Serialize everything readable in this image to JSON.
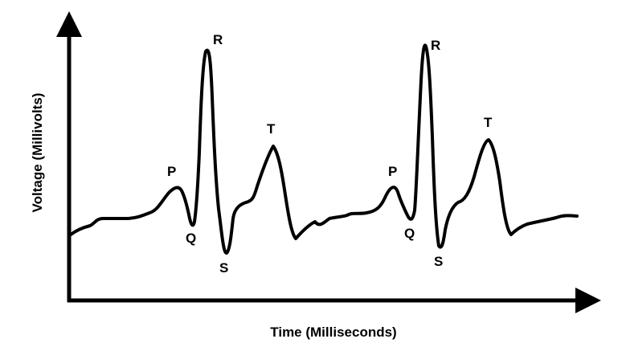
{
  "axes": {
    "x_label": "Time (Milliseconds)",
    "y_label": "Voltage (Millivolts)"
  },
  "waveform": {
    "beats": [
      {
        "p": "P",
        "q": "Q",
        "r": "R",
        "s": "S",
        "t": "T"
      },
      {
        "p": "P",
        "q": "Q",
        "r": "R",
        "s": "S",
        "t": "T"
      }
    ]
  },
  "colors": {
    "stroke": "#000000",
    "background": "#ffffff"
  }
}
